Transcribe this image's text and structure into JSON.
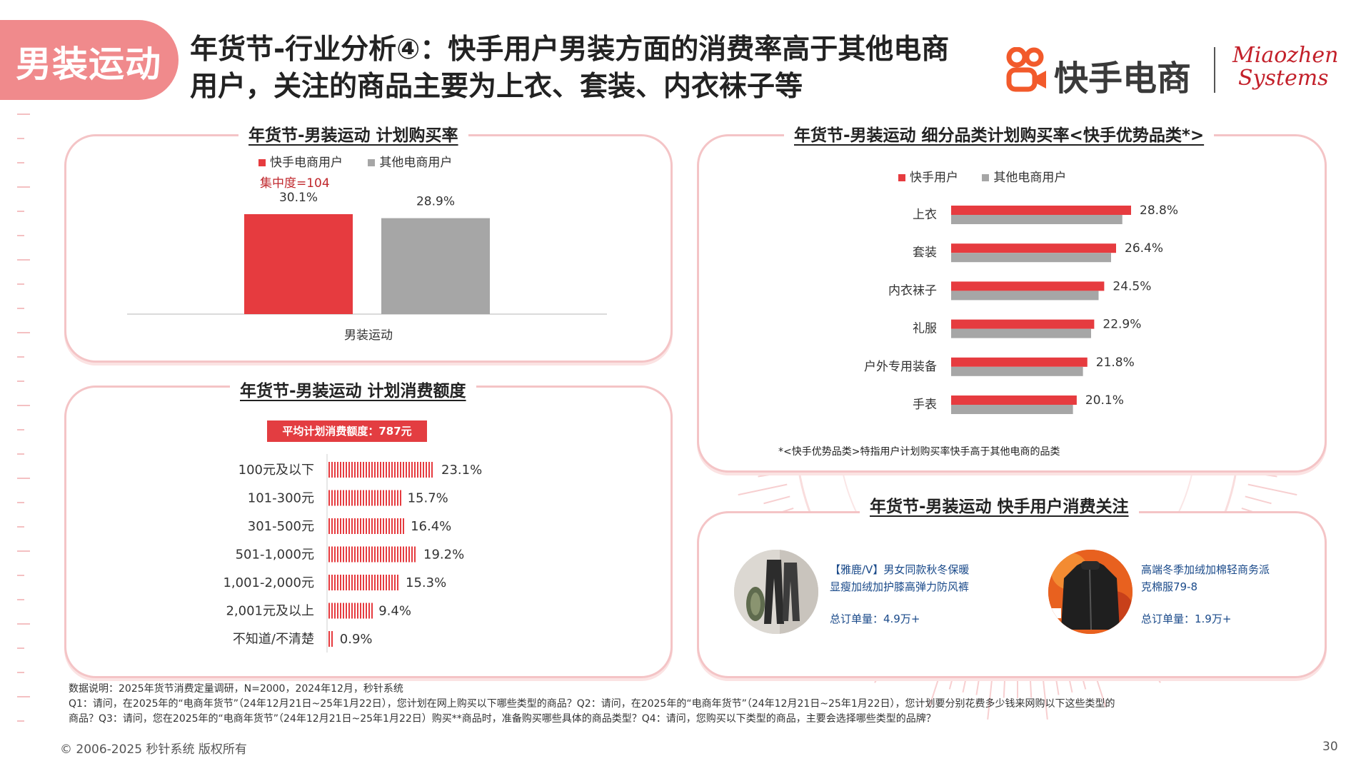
{
  "header": {
    "tag": "男装运动",
    "title_line1": "年货节-行业分析④：快手用户男装方面的消费率高于其他电商",
    "title_line2": "用户，关注的商品主要为上衣、套装、内衣袜子等",
    "logo_kuaishou": "快手电商",
    "logo_miaozhen_1": "Miaozhen",
    "logo_miaozhen_2": "Systems"
  },
  "panel1": {
    "title": "年货节-男装运动 计划购买率",
    "concentration": "集中度=104"
  },
  "panel2": {
    "title": "年货节-男装运动 计划消费额度",
    "badge": "平均计划消费额度：787元"
  },
  "panel3": {
    "title": "年货节-男装运动 细分品类计划购买率<快手优势品类*>",
    "footnote": "*<快手优势品类>特指用户计划购买率快手高于其他电商的品类"
  },
  "panel4": {
    "title": "年货节-男装运动 快手用户消费关注",
    "products": [
      {
        "name_line1": "【雅鹿/V】男女同款秋冬保暖",
        "name_line2": "显瘦加绒加护膝高弹力防风裤",
        "orders": "总订单量：4.9万+"
      },
      {
        "name_line1": "高端冬季加绒加棉轻商务派",
        "name_line2": "克棉服79-8",
        "orders": "总订单量：1.9万+"
      }
    ]
  },
  "chart_data": [
    {
      "type": "bar",
      "title": "年货节-男装运动 计划购买率",
      "categories": [
        "男装运动"
      ],
      "series": [
        {
          "name": "快手电商用户",
          "color": "#e63b3f",
          "values": [
            30.1
          ],
          "labels": [
            "30.1%"
          ]
        },
        {
          "name": "其他电商用户",
          "color": "#a6a6a6",
          "values": [
            28.9
          ],
          "labels": [
            "28.9%"
          ]
        }
      ],
      "ylim": [
        0,
        35
      ]
    },
    {
      "type": "bar",
      "orientation": "horizontal",
      "title": "年货节-男装运动 计划消费额度",
      "categories": [
        "100元及以下",
        "101-300元",
        "301-500元",
        "501-1,000元",
        "1,001-2,000元",
        "2,001元及以上",
        "不知道/不清楚"
      ],
      "values": [
        23.1,
        15.7,
        16.4,
        19.2,
        15.3,
        9.4,
        0.9
      ],
      "labels": [
        "23.1%",
        "15.7%",
        "16.4%",
        "19.2%",
        "15.3%",
        "9.4%",
        "0.9%"
      ],
      "color": "#e63b3f",
      "xlim": [
        0,
        25
      ]
    },
    {
      "type": "bar",
      "orientation": "horizontal",
      "title": "年货节-男装运动 细分品类计划购买率<快手优势品类*>",
      "categories": [
        "上衣",
        "套装",
        "内衣袜子",
        "礼服",
        "户外专用装备",
        "手表"
      ],
      "series": [
        {
          "name": "快手用户",
          "color": "#e63b3f",
          "values": [
            28.8,
            26.4,
            24.5,
            22.9,
            21.8,
            20.1
          ],
          "labels": [
            "28.8%",
            "26.4%",
            "24.5%",
            "22.9%",
            "21.8%",
            "20.1%"
          ]
        },
        {
          "name": "其他电商用户",
          "color": "#a6a6a6",
          "values": [
            27.4,
            25.6,
            23.6,
            22.4,
            21.1,
            19.5
          ]
        }
      ],
      "xlim": [
        0,
        30
      ]
    }
  ],
  "footer": {
    "line1": "数据说明：2025年货节消费定量调研，N=2000，2024年12月，秒针系统",
    "line2": "Q1：请问，在2025年的“电商年货节”（24年12月21日~25年1月22日），您计划在网上购买以下哪些类型的商品？Q2：请问，在2025年的“电商年货节”（24年12月21日~25年1月22日），您计划要分别花费多少钱来网购以下这些类型的",
    "line3": "商品？Q3：请问，您在2025年的“电商年货节”（24年12月21日~25年1月22日）购买**商品时，准备购买哪些具体的商品类型？Q4：请问，您购买以下类型的商品，主要会选择哪些类型的品牌？",
    "copyright": "© 2006-2025 秒针系统 版权所有",
    "page": "30"
  }
}
